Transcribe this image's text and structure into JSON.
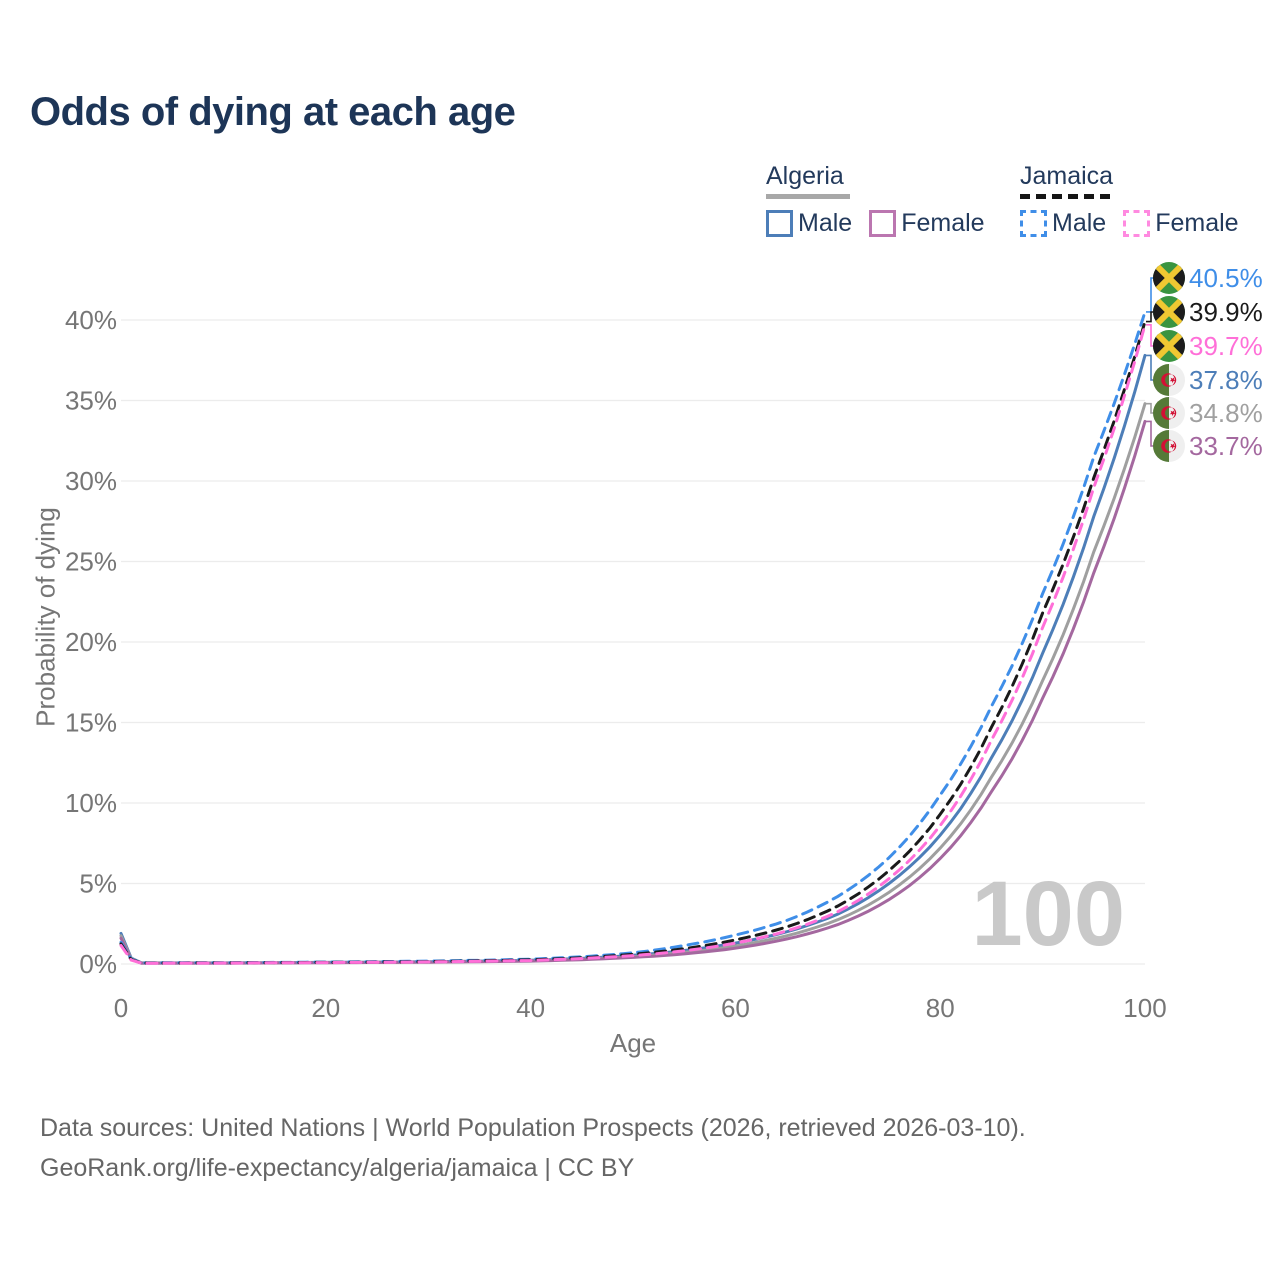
{
  "page": {
    "title": "Odds of dying at each age",
    "watermark_age": "100"
  },
  "legend": {
    "groups": [
      {
        "id": "algeria",
        "label": "Algeria",
        "line_style": "solid",
        "line_color": "#a8a8a8",
        "items": [
          {
            "label": "Male",
            "swatch_color": "#4d7eb8",
            "swatch_style": "solid"
          },
          {
            "label": "Female",
            "swatch_color": "#bb76b0",
            "swatch_style": "solid"
          }
        ]
      },
      {
        "id": "jamaica",
        "label": "Jamaica",
        "line_style": "dashed",
        "line_color": "#151515",
        "items": [
          {
            "label": "Male",
            "swatch_color": "#3f8ee8",
            "swatch_style": "dashed"
          },
          {
            "label": "Female",
            "swatch_color": "#ff8ae0",
            "swatch_style": "dashed"
          }
        ]
      }
    ]
  },
  "axes": {
    "y_title": "Probability of dying",
    "x_title": "Age",
    "y_tick_labels": [
      "0%",
      "5%",
      "10%",
      "15%",
      "20%",
      "25%",
      "30%",
      "35%",
      "40%"
    ],
    "x_tick_labels": [
      "0",
      "20",
      "40",
      "60",
      "80",
      "100"
    ]
  },
  "footer": {
    "line1": "Data sources: United Nations | World Population Prospects (2026, retrieved 2026-03-10).",
    "line2": "GeoRank.org/life-expectancy/algeria/jamaica | CC BY"
  },
  "chart_data": {
    "type": "line",
    "title": "Odds of dying at each age",
    "xlabel": "Age",
    "ylabel": "Probability of dying",
    "xlim": [
      0,
      100
    ],
    "ylim_percent": [
      0,
      43
    ],
    "x_ticks": [
      0,
      20,
      40,
      60,
      80,
      100
    ],
    "y_ticks_percent": [
      0,
      5,
      10,
      15,
      20,
      25,
      30,
      35,
      40
    ],
    "grid": true,
    "legend_position": "top-right",
    "ages": [
      0,
      2,
      10,
      20,
      30,
      40,
      45,
      50,
      55,
      60,
      65,
      70,
      75,
      80,
      85,
      90,
      95,
      100
    ],
    "series": [
      {
        "name": "Jamaica Male",
        "country": "Jamaica",
        "sex": "Male",
        "style": "dashed",
        "color": "#3f8ee8",
        "label_color": "#3f8ee8",
        "flag": "jamaica",
        "end_label": "40.5%",
        "end_value": 40.5,
        "values_percent": [
          1.35,
          0.07,
          0.08,
          0.12,
          0.18,
          0.3,
          0.45,
          0.7,
          1.15,
          1.8,
          2.7,
          4.2,
          6.6,
          10.5,
          16.0,
          23.0,
          31.5,
          40.5
        ]
      },
      {
        "name": "Jamaica",
        "country": "Jamaica",
        "sex": "Both",
        "style": "dashed",
        "color": "#1a1a1a",
        "label_color": "#1a1a1a",
        "flag": "jamaica",
        "end_label": "39.9%",
        "end_value": 39.9,
        "values_percent": [
          1.25,
          0.06,
          0.07,
          0.1,
          0.15,
          0.26,
          0.39,
          0.6,
          0.95,
          1.5,
          2.3,
          3.6,
          5.8,
          9.3,
          14.7,
          21.8,
          30.2,
          39.9
        ]
      },
      {
        "name": "Jamaica Female",
        "country": "Jamaica",
        "sex": "Female",
        "style": "dashed",
        "color": "#ff6fd8",
        "label_color": "#ff6fd8",
        "flag": "jamaica",
        "end_label": "39.7%",
        "end_value": 39.7,
        "values_percent": [
          1.15,
          0.05,
          0.06,
          0.09,
          0.13,
          0.22,
          0.34,
          0.52,
          0.82,
          1.3,
          2.05,
          3.25,
          5.3,
          8.6,
          13.9,
          20.9,
          29.6,
          39.7
        ]
      },
      {
        "name": "Algeria Male",
        "country": "Algeria",
        "sex": "Male",
        "style": "solid",
        "color": "#4d7eb8",
        "label_color": "#4d7eb8",
        "flag": "algeria",
        "end_label": "37.8%",
        "end_value": 37.8,
        "values_percent": [
          1.9,
          0.07,
          0.07,
          0.1,
          0.14,
          0.23,
          0.35,
          0.54,
          0.84,
          1.3,
          2.0,
          3.1,
          5.0,
          8.0,
          12.8,
          19.3,
          27.8,
          37.8
        ]
      },
      {
        "name": "Algeria",
        "country": "Algeria",
        "sex": "Both",
        "style": "solid",
        "color": "#9f9f9f",
        "label_color": "#a0a0a0",
        "flag": "algeria",
        "end_label": "34.8%",
        "end_value": 34.8,
        "values_percent": [
          1.75,
          0.06,
          0.06,
          0.09,
          0.12,
          0.2,
          0.3,
          0.46,
          0.72,
          1.12,
          1.75,
          2.75,
          4.45,
          7.2,
          11.6,
          17.6,
          25.6,
          34.8
        ]
      },
      {
        "name": "Algeria Female",
        "country": "Algeria",
        "sex": "Female",
        "style": "solid",
        "color": "#a4689f",
        "label_color": "#a4689f",
        "flag": "algeria",
        "end_label": "33.7%",
        "end_value": 33.7,
        "values_percent": [
          1.6,
          0.05,
          0.05,
          0.08,
          0.11,
          0.18,
          0.27,
          0.41,
          0.63,
          0.98,
          1.55,
          2.45,
          4.0,
          6.55,
          10.7,
          16.5,
          24.3,
          33.7
        ]
      }
    ]
  }
}
